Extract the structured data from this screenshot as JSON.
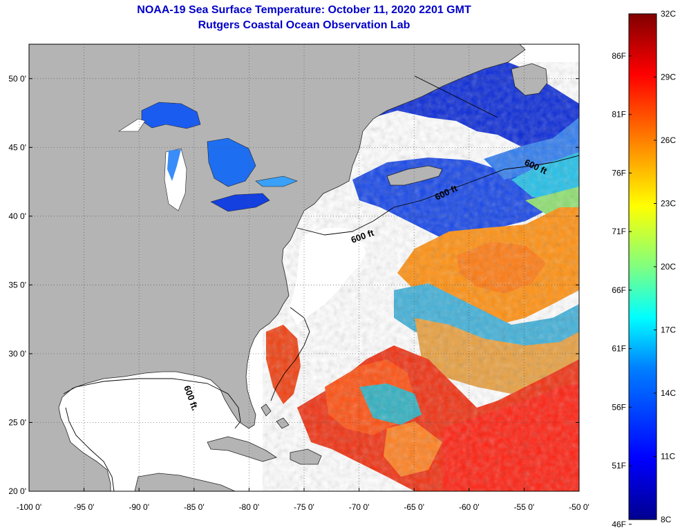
{
  "title": "NOAA-19 Sea Surface Temperature:  October 11, 2020 2201 GMT",
  "subtitle": "Rutgers Coastal Ocean Observation Lab",
  "map": {
    "lon_range": [
      -100,
      -50
    ],
    "lat_range": [
      20,
      52.5
    ],
    "lon_ticks": [
      "-100 0'",
      "-95 0'",
      "-90 0'",
      "-85 0'",
      "-80 0'",
      "-75 0'",
      "-70 0'",
      "-65 0'",
      "-60 0'",
      "-55 0'",
      "-50 0'"
    ],
    "lat_ticks": [
      "20 0'",
      "25 0'",
      "30 0'",
      "35 0'",
      "40 0'",
      "45 0'",
      "50 0'"
    ],
    "contour_labels": [
      "600 ft",
      "600 ft",
      "600 ft.",
      "600 ft"
    ],
    "land_color": "#b4b4b4",
    "no_data_color": "#ffffff"
  },
  "colorbar": {
    "range_c": [
      8,
      32
    ],
    "celsius_labels": [
      "32C",
      "29C",
      "26C",
      "23C",
      "20C",
      "17C",
      "14C",
      "11C",
      "8C"
    ],
    "fahrenheit_labels": [
      "86F",
      "81F",
      "76F",
      "71F",
      "66F",
      "61F",
      "56F",
      "51F",
      "46F"
    ],
    "colors": [
      "#00008f",
      "#0000ff",
      "#0080ff",
      "#00ffff",
      "#80ff80",
      "#ffff00",
      "#ff8000",
      "#ff0000",
      "#800000"
    ]
  }
}
